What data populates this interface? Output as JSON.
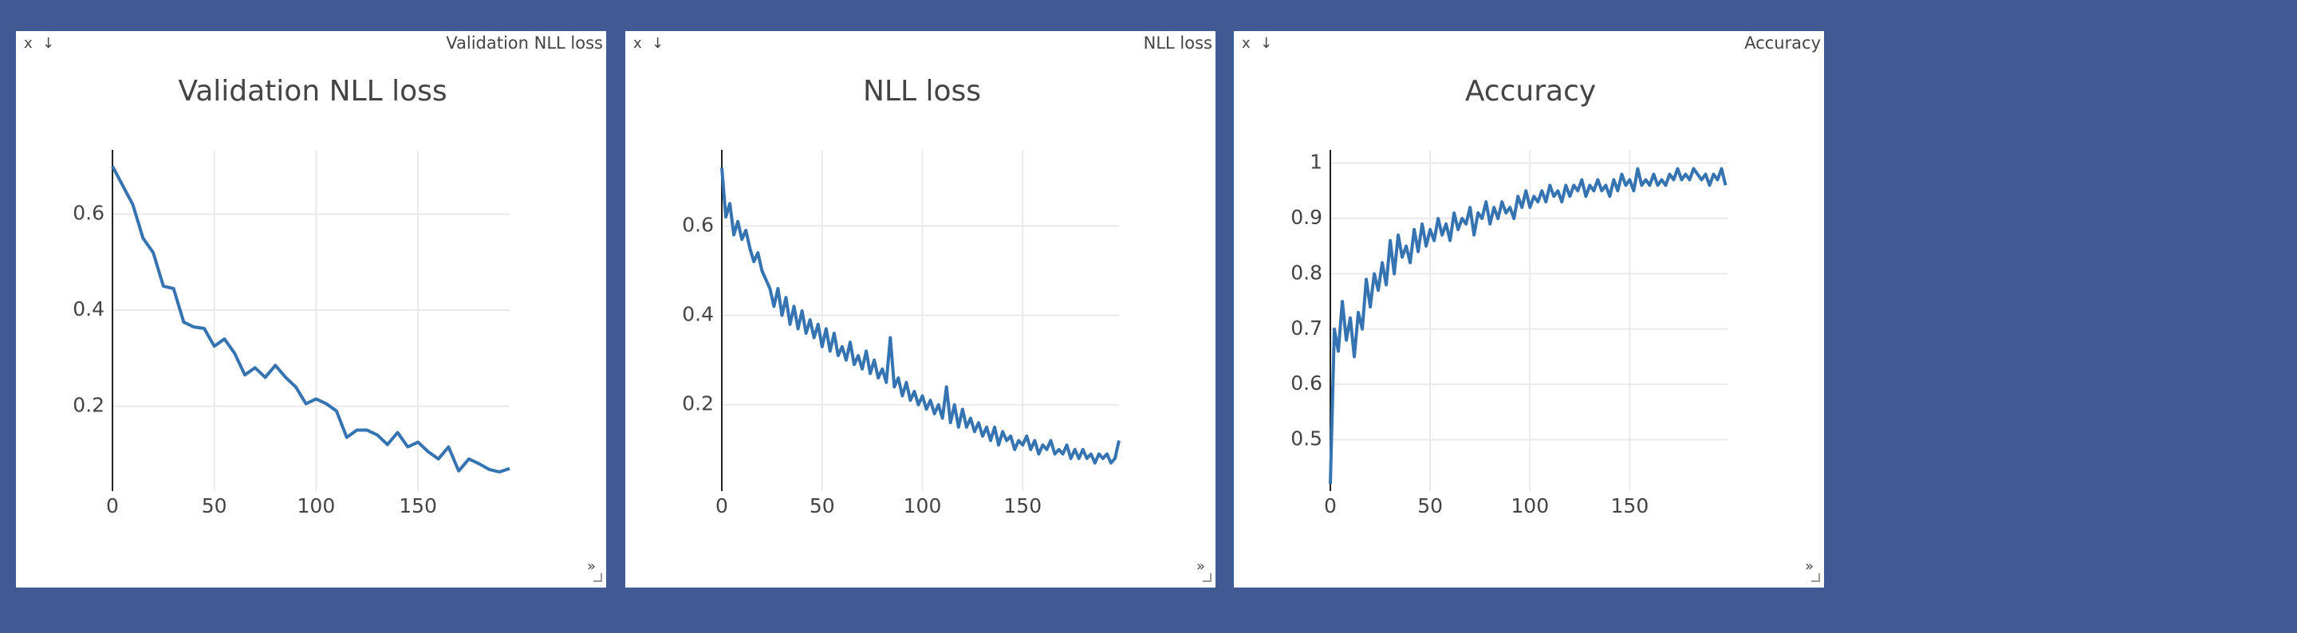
{
  "windows": [
    {
      "controls": [
        "x",
        "↓"
      ],
      "resize": "»"
    },
    {
      "controls": [
        "x",
        "↓"
      ],
      "resize": "»"
    },
    {
      "controls": [
        "x",
        "↓"
      ],
      "resize": "»"
    }
  ],
  "chart_data": [
    {
      "type": "line",
      "title": "Validation NLL loss",
      "color": "#3673b1",
      "grid": true,
      "xlim": [
        0,
        195
      ],
      "ylim": [
        0.023,
        0.734
      ],
      "xticks": [
        0,
        50,
        100,
        150
      ],
      "yticks": [
        0.2,
        0.4,
        0.6
      ],
      "x": [
        0,
        5,
        10,
        15,
        20,
        25,
        30,
        35,
        40,
        45,
        50,
        55,
        60,
        65,
        70,
        75,
        80,
        85,
        90,
        95,
        100,
        105,
        110,
        115,
        120,
        125,
        130,
        135,
        140,
        145,
        150,
        155,
        160,
        165,
        170,
        175,
        180,
        185,
        190,
        195
      ],
      "values": [
        0.7,
        0.66,
        0.62,
        0.55,
        0.52,
        0.45,
        0.445,
        0.375,
        0.365,
        0.362,
        0.325,
        0.34,
        0.31,
        0.265,
        0.28,
        0.26,
        0.285,
        0.26,
        0.24,
        0.205,
        0.215,
        0.205,
        0.19,
        0.135,
        0.15,
        0.15,
        0.14,
        0.12,
        0.145,
        0.115,
        0.125,
        0.105,
        0.09,
        0.115,
        0.065,
        0.09,
        0.08,
        0.068,
        0.063,
        0.07
      ]
    },
    {
      "type": "line",
      "title": "NLL loss",
      "color": "#3673b1",
      "grid": true,
      "xlim": [
        0,
        198
      ],
      "ylim": [
        0.007,
        0.77
      ],
      "xticks": [
        0,
        50,
        100,
        150
      ],
      "yticks": [
        0.2,
        0.4,
        0.6
      ],
      "x": [
        0,
        2,
        4,
        6,
        8,
        10,
        12,
        14,
        16,
        18,
        20,
        22,
        24,
        26,
        28,
        30,
        32,
        34,
        36,
        38,
        40,
        42,
        44,
        46,
        48,
        50,
        52,
        54,
        56,
        58,
        60,
        62,
        64,
        66,
        68,
        70,
        72,
        74,
        76,
        78,
        80,
        82,
        84,
        86,
        88,
        90,
        92,
        94,
        96,
        98,
        100,
        102,
        104,
        106,
        108,
        110,
        112,
        114,
        116,
        118,
        120,
        122,
        124,
        126,
        128,
        130,
        132,
        134,
        136,
        138,
        140,
        142,
        144,
        146,
        148,
        150,
        152,
        154,
        156,
        158,
        160,
        162,
        164,
        166,
        168,
        170,
        172,
        174,
        176,
        178,
        180,
        182,
        184,
        186,
        188,
        190,
        192,
        194,
        196,
        198
      ],
      "values": [
        0.73,
        0.62,
        0.65,
        0.58,
        0.61,
        0.57,
        0.59,
        0.55,
        0.52,
        0.54,
        0.5,
        0.48,
        0.46,
        0.42,
        0.46,
        0.4,
        0.44,
        0.38,
        0.42,
        0.37,
        0.41,
        0.36,
        0.39,
        0.35,
        0.38,
        0.33,
        0.37,
        0.32,
        0.36,
        0.31,
        0.33,
        0.3,
        0.34,
        0.29,
        0.31,
        0.28,
        0.32,
        0.27,
        0.3,
        0.26,
        0.28,
        0.25,
        0.35,
        0.24,
        0.26,
        0.22,
        0.25,
        0.21,
        0.23,
        0.2,
        0.22,
        0.19,
        0.21,
        0.18,
        0.2,
        0.17,
        0.24,
        0.16,
        0.2,
        0.15,
        0.19,
        0.15,
        0.17,
        0.14,
        0.16,
        0.13,
        0.15,
        0.12,
        0.15,
        0.11,
        0.14,
        0.12,
        0.13,
        0.1,
        0.12,
        0.11,
        0.13,
        0.1,
        0.12,
        0.09,
        0.11,
        0.1,
        0.12,
        0.09,
        0.1,
        0.09,
        0.11,
        0.08,
        0.1,
        0.08,
        0.1,
        0.08,
        0.09,
        0.07,
        0.09,
        0.08,
        0.09,
        0.07,
        0.08,
        0.12
      ]
    },
    {
      "type": "line",
      "title": "Accuracy",
      "color": "#3673b1",
      "grid": true,
      "xlim": [
        0,
        199
      ],
      "ylim": [
        0.407,
        1.024
      ],
      "xticks": [
        0,
        50,
        100,
        150
      ],
      "yticks": [
        0.5,
        0.6,
        0.7,
        0.8,
        0.9,
        1
      ],
      "x": [
        0,
        2,
        4,
        6,
        8,
        10,
        12,
        14,
        16,
        18,
        20,
        22,
        24,
        26,
        28,
        30,
        32,
        34,
        36,
        38,
        40,
        42,
        44,
        46,
        48,
        50,
        52,
        54,
        56,
        58,
        60,
        62,
        64,
        66,
        68,
        70,
        72,
        74,
        76,
        78,
        80,
        82,
        84,
        86,
        88,
        90,
        92,
        94,
        96,
        98,
        100,
        102,
        104,
        106,
        108,
        110,
        112,
        114,
        116,
        118,
        120,
        122,
        124,
        126,
        128,
        130,
        132,
        134,
        136,
        138,
        140,
        142,
        144,
        146,
        148,
        150,
        152,
        154,
        156,
        158,
        160,
        162,
        164,
        166,
        168,
        170,
        172,
        174,
        176,
        178,
        180,
        182,
        184,
        186,
        188,
        190,
        192,
        194,
        196,
        198
      ],
      "values": [
        0.42,
        0.7,
        0.66,
        0.75,
        0.68,
        0.72,
        0.65,
        0.73,
        0.7,
        0.79,
        0.74,
        0.8,
        0.77,
        0.82,
        0.78,
        0.86,
        0.8,
        0.87,
        0.83,
        0.85,
        0.82,
        0.88,
        0.84,
        0.89,
        0.85,
        0.88,
        0.86,
        0.9,
        0.87,
        0.89,
        0.86,
        0.91,
        0.88,
        0.9,
        0.89,
        0.92,
        0.87,
        0.91,
        0.9,
        0.93,
        0.89,
        0.92,
        0.9,
        0.93,
        0.91,
        0.92,
        0.9,
        0.94,
        0.92,
        0.95,
        0.92,
        0.94,
        0.93,
        0.95,
        0.93,
        0.96,
        0.94,
        0.95,
        0.93,
        0.96,
        0.94,
        0.96,
        0.95,
        0.97,
        0.94,
        0.96,
        0.95,
        0.97,
        0.95,
        0.96,
        0.94,
        0.97,
        0.95,
        0.98,
        0.96,
        0.97,
        0.95,
        0.99,
        0.96,
        0.97,
        0.96,
        0.98,
        0.96,
        0.97,
        0.96,
        0.98,
        0.97,
        0.99,
        0.97,
        0.98,
        0.97,
        0.99,
        0.98,
        0.97,
        0.98,
        0.96,
        0.98,
        0.97,
        0.99,
        0.96
      ]
    }
  ]
}
